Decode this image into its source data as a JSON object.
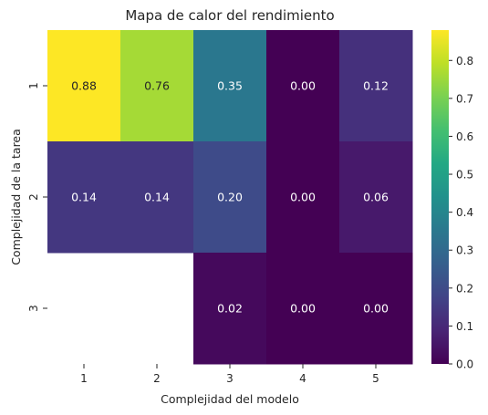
{
  "chart_data": {
    "type": "heatmap",
    "title": "Mapa de calor del rendimiento",
    "xlabel": "Complejidad del modelo",
    "ylabel": "Complejidad de la tarea",
    "x_categories": [
      "1",
      "2",
      "3",
      "4",
      "5"
    ],
    "y_categories": [
      "1",
      "2",
      "3"
    ],
    "values": [
      [
        0.88,
        0.76,
        0.35,
        0.0,
        0.12
      ],
      [
        0.14,
        0.14,
        0.2,
        0.0,
        0.06
      ],
      [
        null,
        null,
        0.02,
        0.0,
        0.0
      ]
    ],
    "cell_labels": [
      [
        "0.88",
        "0.76",
        "0.35",
        "0.00",
        "0.12"
      ],
      [
        "0.14",
        "0.14",
        "0.20",
        "0.00",
        "0.06"
      ],
      [
        null,
        null,
        "0.02",
        "0.00",
        "0.00"
      ]
    ],
    "colormap": "viridis",
    "vmin": 0.0,
    "vmax": 0.88,
    "colorbar_ticks": [
      "0.0",
      "0.1",
      "0.2",
      "0.3",
      "0.4",
      "0.5",
      "0.6",
      "0.7",
      "0.8"
    ],
    "colorbar_tick_values": [
      0.0,
      0.1,
      0.2,
      0.3,
      0.4,
      0.5,
      0.6,
      0.7,
      0.8
    ],
    "legend": "colorbar-right",
    "grid": false
  }
}
